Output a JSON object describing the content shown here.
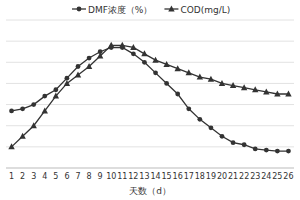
{
  "chart_data": {
    "type": "line",
    "x_label": "天数（d）",
    "categories": [
      "1",
      "2",
      "3",
      "4",
      "5",
      "6",
      "7",
      "8",
      "9",
      "10",
      "11",
      "12",
      "13",
      "14",
      "15",
      "16",
      "17",
      "18",
      "19",
      "20",
      "21",
      "22",
      "23",
      "24",
      "25",
      "26"
    ],
    "series": [
      {
        "name": "DMF浓度（%）",
        "color": "#333333",
        "marker": "circle",
        "values": [
          27,
          28,
          30,
          34,
          37,
          42.5,
          48,
          52,
          55,
          57,
          57,
          54,
          50,
          45,
          40,
          35,
          28,
          23,
          19,
          15,
          12,
          11,
          9,
          8.5,
          8,
          8
        ]
      },
      {
        "name": "COD(mg/L)",
        "color": "#333333",
        "marker": "triangle",
        "values": [
          10,
          15,
          20,
          27,
          34,
          40,
          44,
          48,
          53,
          58,
          58,
          57,
          54,
          51,
          49,
          47,
          45,
          43,
          42,
          40,
          39,
          38,
          37,
          36,
          35,
          35
        ]
      }
    ],
    "ylim": [
      0,
      70
    ],
    "yticks": [
      0,
      10,
      20,
      30,
      40,
      50,
      60,
      70
    ],
    "grid": true,
    "legend": "top",
    "tick_labels": "x"
  }
}
